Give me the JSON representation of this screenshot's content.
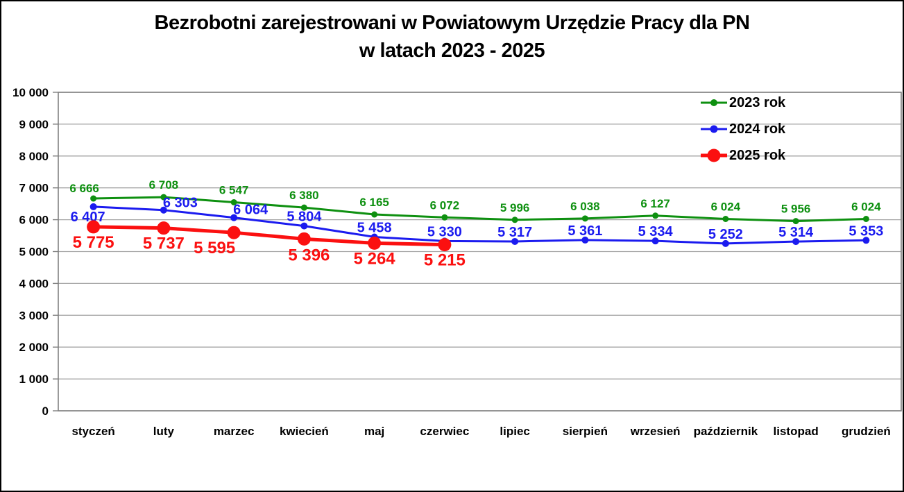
{
  "title": {
    "line1": "Bezrobotni zarejestrowani w Powiatowym Urzędzie Pracy dla PN",
    "line2": "w latach 2023 - 2025"
  },
  "colors": {
    "series_2023": "#0E9010",
    "series_2024": "#1B1BEF",
    "series_2025": "#FB1010",
    "grid": "#A6A6A6",
    "plot_border": "#808080",
    "text": "#000000",
    "background": "#FFFFFF",
    "frame_border": "#000000"
  },
  "legend": {
    "position": "top-right",
    "items": [
      {
        "label": "2023 rok",
        "color_key": "series_2023"
      },
      {
        "label": "2024 rok",
        "color_key": "series_2024"
      },
      {
        "label": "2025 rok",
        "color_key": "series_2025"
      }
    ]
  },
  "chart_data": {
    "type": "line",
    "title": "Bezrobotni zarejestrowani w Powiatowym Urzędzie Pracy dla PN w latach 2023 - 2025",
    "categories": [
      "styczeń",
      "luty",
      "marzec",
      "kwiecień",
      "maj",
      "czerwiec",
      "lipiec",
      "sierpień",
      "wrzesień",
      "październik",
      "listopad",
      "grudzień"
    ],
    "series": [
      {
        "name": "2023 rok",
        "color_key": "series_2023",
        "values": [
          6666,
          6708,
          6547,
          6380,
          6165,
          6072,
          5996,
          6038,
          6127,
          6024,
          5956,
          6024
        ]
      },
      {
        "name": "2024 rok",
        "color_key": "series_2024",
        "values": [
          6407,
          6303,
          6064,
          5804,
          5458,
          5330,
          5317,
          5361,
          5334,
          5252,
          5314,
          5353
        ]
      },
      {
        "name": "2025 rok",
        "color_key": "series_2025",
        "values": [
          5775,
          5737,
          5595,
          5396,
          5264,
          5215
        ]
      }
    ],
    "xlabel": "",
    "ylabel": "",
    "ylim": [
      0,
      10000
    ],
    "y_step": 1000,
    "y_tick_labels": [
      "0",
      "1 000",
      "2 000",
      "3 000",
      "4 000",
      "5 000",
      "6 000",
      "7 000",
      "8 000",
      "9 000",
      "10 000"
    ],
    "grid": true,
    "data_labels": true,
    "legend_position": "top-right",
    "number_format": "space-thousands"
  }
}
